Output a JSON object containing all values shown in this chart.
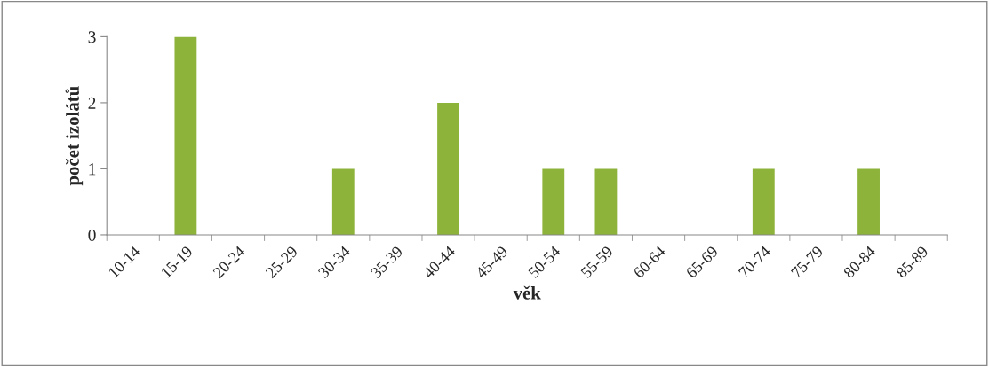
{
  "chart_data": {
    "type": "bar",
    "xlabel": "věk",
    "ylabel": "počet izolátů",
    "categories": [
      "10-14",
      "15-19",
      "20-24",
      "25-29",
      "30-34",
      "35-39",
      "40-44",
      "45-49",
      "50-54",
      "55-59",
      "60-64",
      "65-69",
      "70-74",
      "75-79",
      "80-84",
      "85-89"
    ],
    "values": [
      0,
      3,
      0,
      0,
      1,
      0,
      2,
      0,
      1,
      1,
      0,
      0,
      1,
      0,
      1,
      0
    ],
    "color": "#8db33a",
    "ylim": [
      0,
      3
    ],
    "yticks": [
      0,
      1,
      2,
      3
    ],
    "grid": false,
    "legend": false
  }
}
